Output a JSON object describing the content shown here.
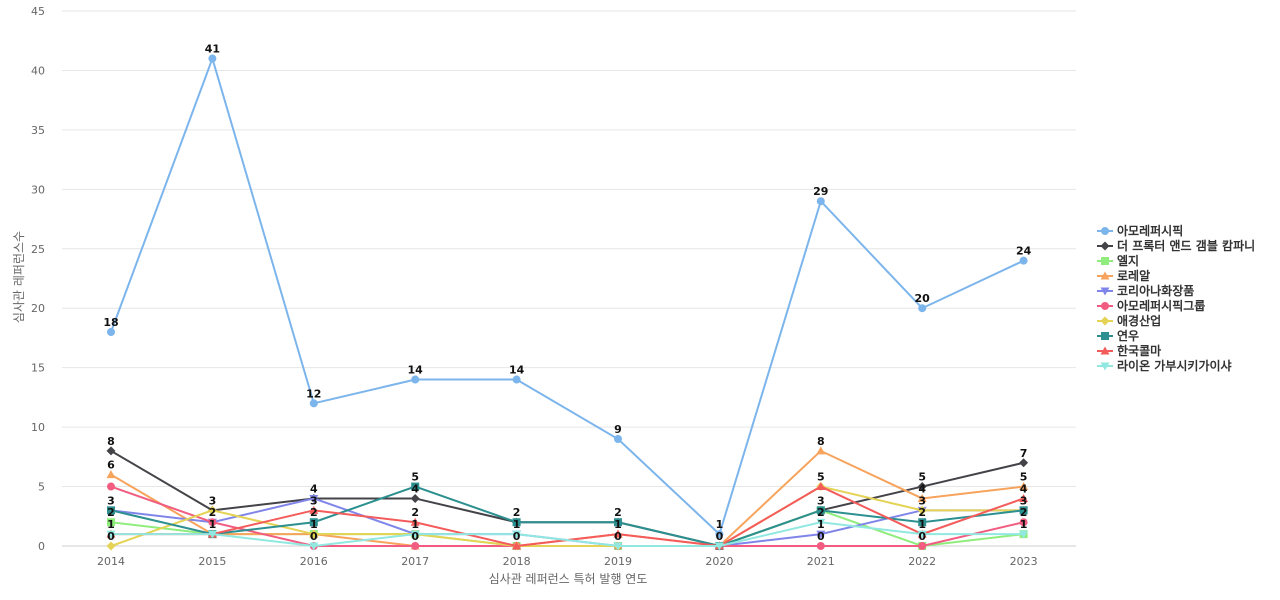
{
  "chart_data": {
    "type": "line",
    "x": [
      "2014",
      "2015",
      "2016",
      "2017",
      "2018",
      "2019",
      "2020",
      "2021",
      "2022",
      "2023"
    ],
    "xlabel": "심사관 레퍼런스 특허 발행 연도",
    "ylabel": "심사관 레퍼런스수",
    "ylim": [
      0,
      45
    ],
    "yticks": [
      "0",
      "5",
      "10",
      "15",
      "20",
      "25",
      "30",
      "35",
      "40",
      "45"
    ],
    "grid": true,
    "legend_position": "right",
    "series": [
      {
        "name": "아모레퍼시픽",
        "color": "#7cb5ec",
        "marker": "circle",
        "values": [
          18,
          41,
          12,
          14,
          14,
          9,
          1,
          29,
          20,
          24
        ]
      },
      {
        "name": "더 프록터 앤드 갬블 캄파니",
        "color": "#434348",
        "marker": "diamond",
        "values": [
          8,
          3,
          4,
          4,
          2,
          2,
          0,
          3,
          5,
          7
        ]
      },
      {
        "name": "엘지",
        "color": "#90ed7d",
        "marker": "square",
        "values": [
          2,
          1,
          1,
          1,
          0,
          0,
          0,
          3,
          0,
          1
        ]
      },
      {
        "name": "로레알",
        "color": "#f7a35c",
        "marker": "triangle",
        "values": [
          6,
          1,
          1,
          0,
          0,
          1,
          0,
          8,
          4,
          5
        ]
      },
      {
        "name": "코리아나화장품",
        "color": "#8085e9",
        "marker": "triangle-down",
        "values": [
          3,
          2,
          4,
          1,
          1,
          0,
          0,
          1,
          3,
          3
        ]
      },
      {
        "name": "아모레퍼시픽그룹",
        "color": "#f15c80",
        "marker": "circle",
        "values": [
          5,
          2,
          0,
          0,
          0,
          0,
          0,
          0,
          0,
          2
        ]
      },
      {
        "name": "애경산업",
        "color": "#e4d354",
        "marker": "diamond",
        "values": [
          0,
          3,
          1,
          1,
          0,
          0,
          0,
          5,
          3,
          3
        ]
      },
      {
        "name": "연우",
        "color": "#2b908f",
        "marker": "square",
        "values": [
          3,
          1,
          2,
          5,
          2,
          2,
          0,
          3,
          2,
          3
        ]
      },
      {
        "name": "한국콜마",
        "color": "#f45b5b",
        "marker": "triangle",
        "values": [
          1,
          1,
          3,
          2,
          0,
          1,
          0,
          5,
          1,
          4
        ]
      },
      {
        "name": "라이온 가부시키가이샤",
        "color": "#91e8e1",
        "marker": "triangle-down",
        "values": [
          1,
          1,
          0,
          1,
          1,
          0,
          0,
          2,
          1,
          1
        ]
      }
    ],
    "data_labels": [
      {
        "x": "2014",
        "text": "18"
      },
      {
        "x": "2014",
        "text": "8"
      },
      {
        "x": "2014",
        "text": "6"
      },
      {
        "x": "2014",
        "text": "3"
      },
      {
        "x": "2014",
        "text": "2"
      },
      {
        "x": "2014",
        "text": "1"
      },
      {
        "x": "2014",
        "text": "0"
      },
      {
        "x": "2015",
        "text": "41"
      },
      {
        "x": "2015",
        "text": "3"
      },
      {
        "x": "2015",
        "text": "2"
      },
      {
        "x": "2015",
        "text": "1"
      },
      {
        "x": "2016",
        "text": "12"
      },
      {
        "x": "2016",
        "text": "4"
      },
      {
        "x": "2016",
        "text": "3"
      },
      {
        "x": "2016",
        "text": "2"
      },
      {
        "x": "2016",
        "text": "1"
      },
      {
        "x": "2016",
        "text": "0"
      },
      {
        "x": "2017",
        "text": "14"
      },
      {
        "x": "2017",
        "text": "5"
      },
      {
        "x": "2017",
        "text": "4"
      },
      {
        "x": "2017",
        "text": "2"
      },
      {
        "x": "2017",
        "text": "1"
      },
      {
        "x": "2017",
        "text": "0"
      },
      {
        "x": "2018",
        "text": "14"
      },
      {
        "x": "2018",
        "text": "2"
      },
      {
        "x": "2018",
        "text": "1"
      },
      {
        "x": "2018",
        "text": "0"
      },
      {
        "x": "2019",
        "text": "9"
      },
      {
        "x": "2019",
        "text": "2"
      },
      {
        "x": "2019",
        "text": "1"
      },
      {
        "x": "2019",
        "text": "0"
      },
      {
        "x": "2020",
        "text": "1"
      },
      {
        "x": "2020",
        "text": "0"
      },
      {
        "x": "2021",
        "text": "29"
      },
      {
        "x": "2021",
        "text": "8"
      },
      {
        "x": "2021",
        "text": "5"
      },
      {
        "x": "2021",
        "text": "3"
      },
      {
        "x": "2021",
        "text": "2"
      },
      {
        "x": "2021",
        "text": "1"
      },
      {
        "x": "2021",
        "text": "0"
      },
      {
        "x": "2022",
        "text": "20"
      },
      {
        "x": "2022",
        "text": "5"
      },
      {
        "x": "2022",
        "text": "4"
      },
      {
        "x": "2022",
        "text": "3"
      },
      {
        "x": "2022",
        "text": "2"
      },
      {
        "x": "2022",
        "text": "1"
      },
      {
        "x": "2022",
        "text": "0"
      },
      {
        "x": "2023",
        "text": "24"
      },
      {
        "x": "2023",
        "text": "7"
      },
      {
        "x": "2023",
        "text": "5"
      },
      {
        "x": "2023",
        "text": "4"
      },
      {
        "x": "2023",
        "text": "3"
      },
      {
        "x": "2023",
        "text": "2"
      },
      {
        "x": "2023",
        "text": "1"
      }
    ]
  }
}
